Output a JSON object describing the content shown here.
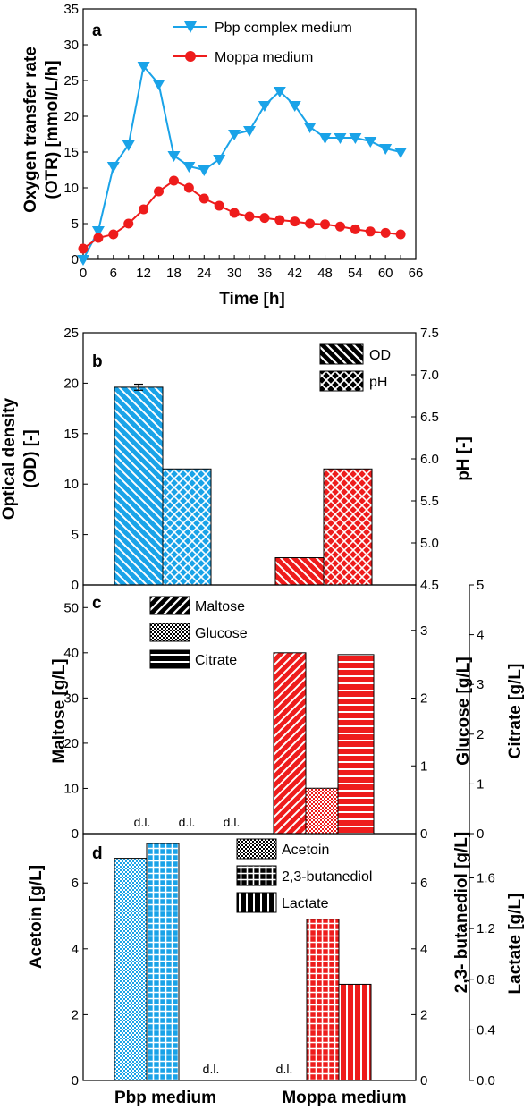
{
  "colors": {
    "blue": "#1aa3e8",
    "red": "#ee1c1c",
    "ink": "#000000"
  },
  "chart_data": [
    {
      "type": "line",
      "panel_label": "a",
      "xlabel": "Time   [h]",
      "ylabel_lines": [
        "Oxygen transfer rate",
        "(OTR)   [mmol/L/h]"
      ],
      "xlim": [
        0,
        66
      ],
      "ylim": [
        0,
        35
      ],
      "xticks": [
        "0",
        "3",
        "6",
        "9",
        "12",
        "15",
        "18",
        "21",
        "24",
        "27",
        "30",
        "33",
        "36",
        "39",
        "42",
        "45",
        "48",
        "51",
        "54",
        "57",
        "60",
        "63",
        "66"
      ],
      "xtick_labels": [
        "0",
        "6",
        "12",
        "18",
        "24",
        "30",
        "36",
        "42",
        "48",
        "54",
        "60",
        "66"
      ],
      "yticks": [
        "0",
        "5",
        "10",
        "15",
        "20",
        "25",
        "30",
        "35"
      ],
      "series": [
        {
          "name": "Pbp complex medium",
          "color": "#1aa3e8",
          "marker": "triangle-down",
          "x": [
            0,
            3,
            6,
            9,
            12,
            15,
            18,
            21,
            24,
            27,
            30,
            33,
            36,
            39,
            42,
            45,
            48,
            51,
            54,
            57,
            60,
            63
          ],
          "y": [
            0,
            4,
            13,
            16,
            27,
            24.5,
            14.5,
            13,
            12.5,
            14,
            17.5,
            18,
            21.5,
            23.5,
            21.5,
            18.5,
            17,
            17,
            17,
            16.5,
            15.5,
            15
          ]
        },
        {
          "name": "Moppa medium",
          "color": "#ee1c1c",
          "marker": "circle",
          "x": [
            0,
            3,
            6,
            9,
            12,
            15,
            18,
            21,
            24,
            27,
            30,
            33,
            36,
            39,
            42,
            45,
            48,
            51,
            54,
            57,
            60,
            63
          ],
          "y": [
            1.5,
            3,
            3.5,
            5,
            7,
            9.5,
            11,
            10,
            8.5,
            7.5,
            6.5,
            6,
            5.8,
            5.5,
            5.3,
            5,
            4.9,
            4.6,
            4.2,
            3.9,
            3.7,
            3.5
          ]
        }
      ]
    },
    {
      "type": "bar",
      "panel_label": "b",
      "ylabel_lines": [
        "Optical density",
        "(OD)   [-]"
      ],
      "y2label": "pH   [-]",
      "ylim": [
        0,
        25
      ],
      "y2lim": [
        4.5,
        7.5
      ],
      "yticks": [
        "0",
        "5",
        "10",
        "15",
        "20",
        "25"
      ],
      "y2ticks": [
        "4.5",
        "5.0",
        "5.5",
        "6.0",
        "6.5",
        "7.0",
        "7.5"
      ],
      "legend": [
        {
          "name": "OD",
          "pattern": "diag-back"
        },
        {
          "name": "pH",
          "pattern": "cross"
        }
      ],
      "bars": [
        {
          "group": "Pbp",
          "series": "OD",
          "value": 19.6,
          "error": 0.3,
          "axis": "left"
        },
        {
          "group": "Pbp",
          "series": "pH",
          "value": 5.88,
          "axis": "right"
        },
        {
          "group": "Moppa",
          "series": "OD",
          "value": 2.7,
          "axis": "left"
        },
        {
          "group": "Moppa",
          "series": "pH",
          "value": 5.88,
          "axis": "right"
        }
      ]
    },
    {
      "type": "bar",
      "panel_label": "c",
      "ylabel": "Maltose   [g/L]",
      "y2label": "Glucose   [g/L]",
      "y3label": "Citrate   [g/L]",
      "ylim": [
        0,
        55
      ],
      "y2lim": [
        0,
        3.67
      ],
      "y3lim": [
        0,
        5
      ],
      "yticks": [
        "0",
        "10",
        "20",
        "30",
        "40",
        "50"
      ],
      "y2ticks": [
        "0",
        "1",
        "2",
        "3"
      ],
      "y3ticks": [
        "0",
        "1",
        "2",
        "3",
        "4",
        "5"
      ],
      "legend": [
        {
          "name": "Maltose",
          "pattern": "diag"
        },
        {
          "name": "Glucose",
          "pattern": "dots"
        },
        {
          "name": "Citrate",
          "pattern": "hlines"
        }
      ],
      "detection_limit_label": "d.l.",
      "bars": [
        {
          "group": "Pbp",
          "series": "Maltose",
          "value": null,
          "dl": true
        },
        {
          "group": "Pbp",
          "series": "Glucose",
          "value": null,
          "dl": true
        },
        {
          "group": "Pbp",
          "series": "Citrate",
          "value": null,
          "dl": true
        },
        {
          "group": "Moppa",
          "series": "Maltose",
          "value": 40,
          "axis": "left"
        },
        {
          "group": "Moppa",
          "series": "Glucose",
          "value": 0.67,
          "axis": "y2"
        },
        {
          "group": "Moppa",
          "series": "Citrate",
          "value": 3.6,
          "axis": "y3"
        }
      ]
    },
    {
      "type": "bar",
      "panel_label": "d",
      "ylabel": "Acetoin   [g/L]",
      "y2label": "2,3- butanediol   [g/L]",
      "y3label": "Lactate   [g/L]",
      "ylim": [
        0,
        7.5
      ],
      "y2lim": [
        0,
        7.5
      ],
      "y3lim": [
        0,
        1.95
      ],
      "yticks": [
        "0",
        "2",
        "4",
        "6"
      ],
      "y2ticks": [
        "0",
        "2",
        "4",
        "6"
      ],
      "y3ticks": [
        "0.0",
        "0.4",
        "0.8",
        "1.2",
        "1.6"
      ],
      "categories": [
        "Pbp medium",
        "Moppa medium"
      ],
      "legend": [
        {
          "name": "Acetoin",
          "pattern": "fine"
        },
        {
          "name": "2,3-butanediol",
          "pattern": "grid"
        },
        {
          "name": "Lactate",
          "pattern": "vlines"
        }
      ],
      "detection_limit_label": "d.l.",
      "bars": [
        {
          "group": "Pbp",
          "series": "Acetoin",
          "value": 6.75,
          "axis": "left"
        },
        {
          "group": "Pbp",
          "series": "2,3-butanediol",
          "value": 7.2,
          "axis": "y2"
        },
        {
          "group": "Pbp",
          "series": "Lactate",
          "value": null,
          "dl": true
        },
        {
          "group": "Moppa",
          "series": "Acetoin",
          "value": null,
          "dl": true
        },
        {
          "group": "Moppa",
          "series": "2,3-butanediol",
          "value": 4.9,
          "axis": "y2"
        },
        {
          "group": "Moppa",
          "series": "Lactate",
          "value": 0.76,
          "axis": "y3"
        }
      ]
    }
  ]
}
